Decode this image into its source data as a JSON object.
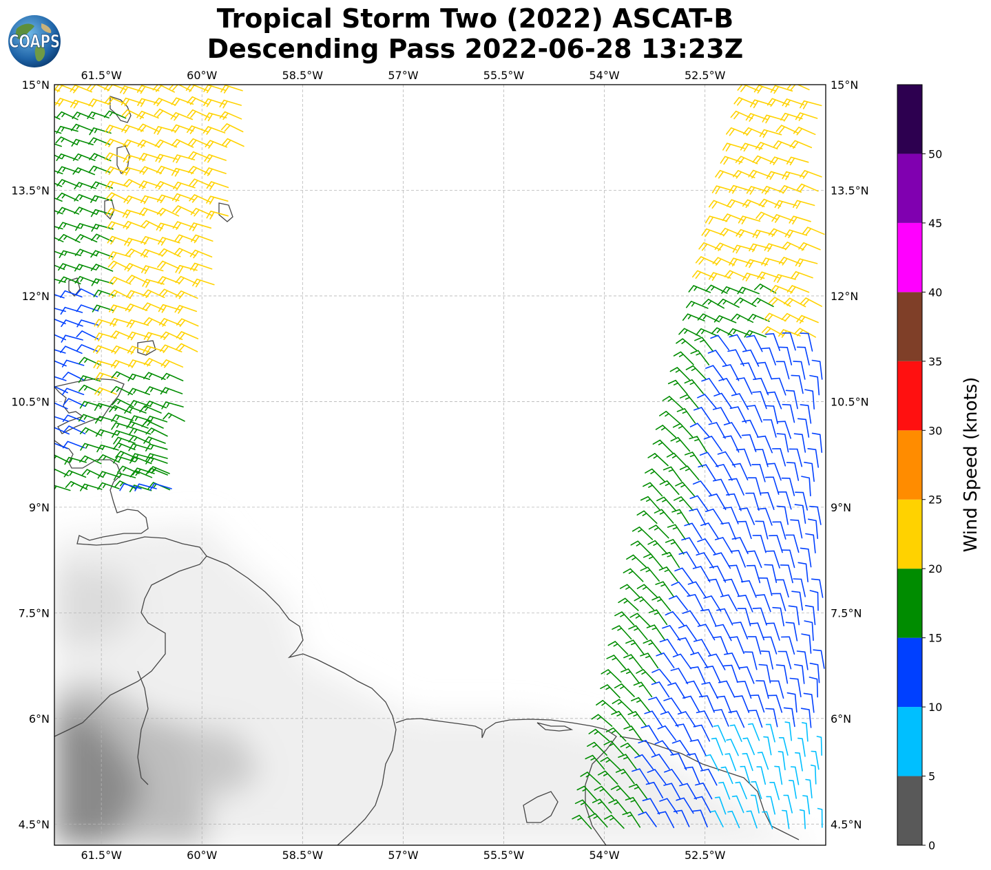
{
  "title": {
    "line1": "Tropical Storm Two (2022) ASCAT-B",
    "line2": "Descending Pass 2022-06-28 13:23Z"
  },
  "logo": {
    "text": "COAPS",
    "icon": "globe-icon"
  },
  "map": {
    "lon_range": [
      -62.2,
      -50.7
    ],
    "lat_range": [
      4.2,
      15.0
    ],
    "lon_ticks": [
      {
        "value": -61.5,
        "label": "61.5°W"
      },
      {
        "value": -60.0,
        "label": "60°W"
      },
      {
        "value": -58.5,
        "label": "58.5°W"
      },
      {
        "value": -57.0,
        "label": "57°W"
      },
      {
        "value": -55.5,
        "label": "55.5°W"
      },
      {
        "value": -54.0,
        "label": "54°W"
      },
      {
        "value": -52.5,
        "label": "52.5°W"
      }
    ],
    "lat_ticks": [
      {
        "value": 15.0,
        "label": "15°N"
      },
      {
        "value": 13.5,
        "label": "13.5°N"
      },
      {
        "value": 12.0,
        "label": "12°N"
      },
      {
        "value": 10.5,
        "label": "10.5°N"
      },
      {
        "value": 9.0,
        "label": "9°N"
      },
      {
        "value": 7.5,
        "label": "7.5°N"
      },
      {
        "value": 6.0,
        "label": "6°N"
      },
      {
        "value": 4.5,
        "label": "4.5°N"
      }
    ],
    "grid": true
  },
  "colorbar": {
    "label": "Wind Speed (knots)",
    "ticks": [
      "0",
      "5",
      "10",
      "15",
      "20",
      "25",
      "30",
      "35",
      "40",
      "45",
      "50"
    ],
    "bins": [
      {
        "min": 0,
        "max": 5,
        "color": "#595959"
      },
      {
        "min": 5,
        "max": 10,
        "color": "#00bfff"
      },
      {
        "min": 10,
        "max": 15,
        "color": "#0040ff"
      },
      {
        "min": 15,
        "max": 20,
        "color": "#008c00"
      },
      {
        "min": 20,
        "max": 25,
        "color": "#ffd200"
      },
      {
        "min": 25,
        "max": 30,
        "color": "#ff8c00"
      },
      {
        "min": 30,
        "max": 35,
        "color": "#ff1010"
      },
      {
        "min": 35,
        "max": 40,
        "color": "#7f3f28"
      },
      {
        "min": 40,
        "max": 45,
        "color": "#ff00ff"
      },
      {
        "min": 45,
        "max": 50,
        "color": "#8000b0"
      },
      {
        "min": 50,
        "max": 55,
        "color": "#2d0050"
      }
    ]
  }
}
